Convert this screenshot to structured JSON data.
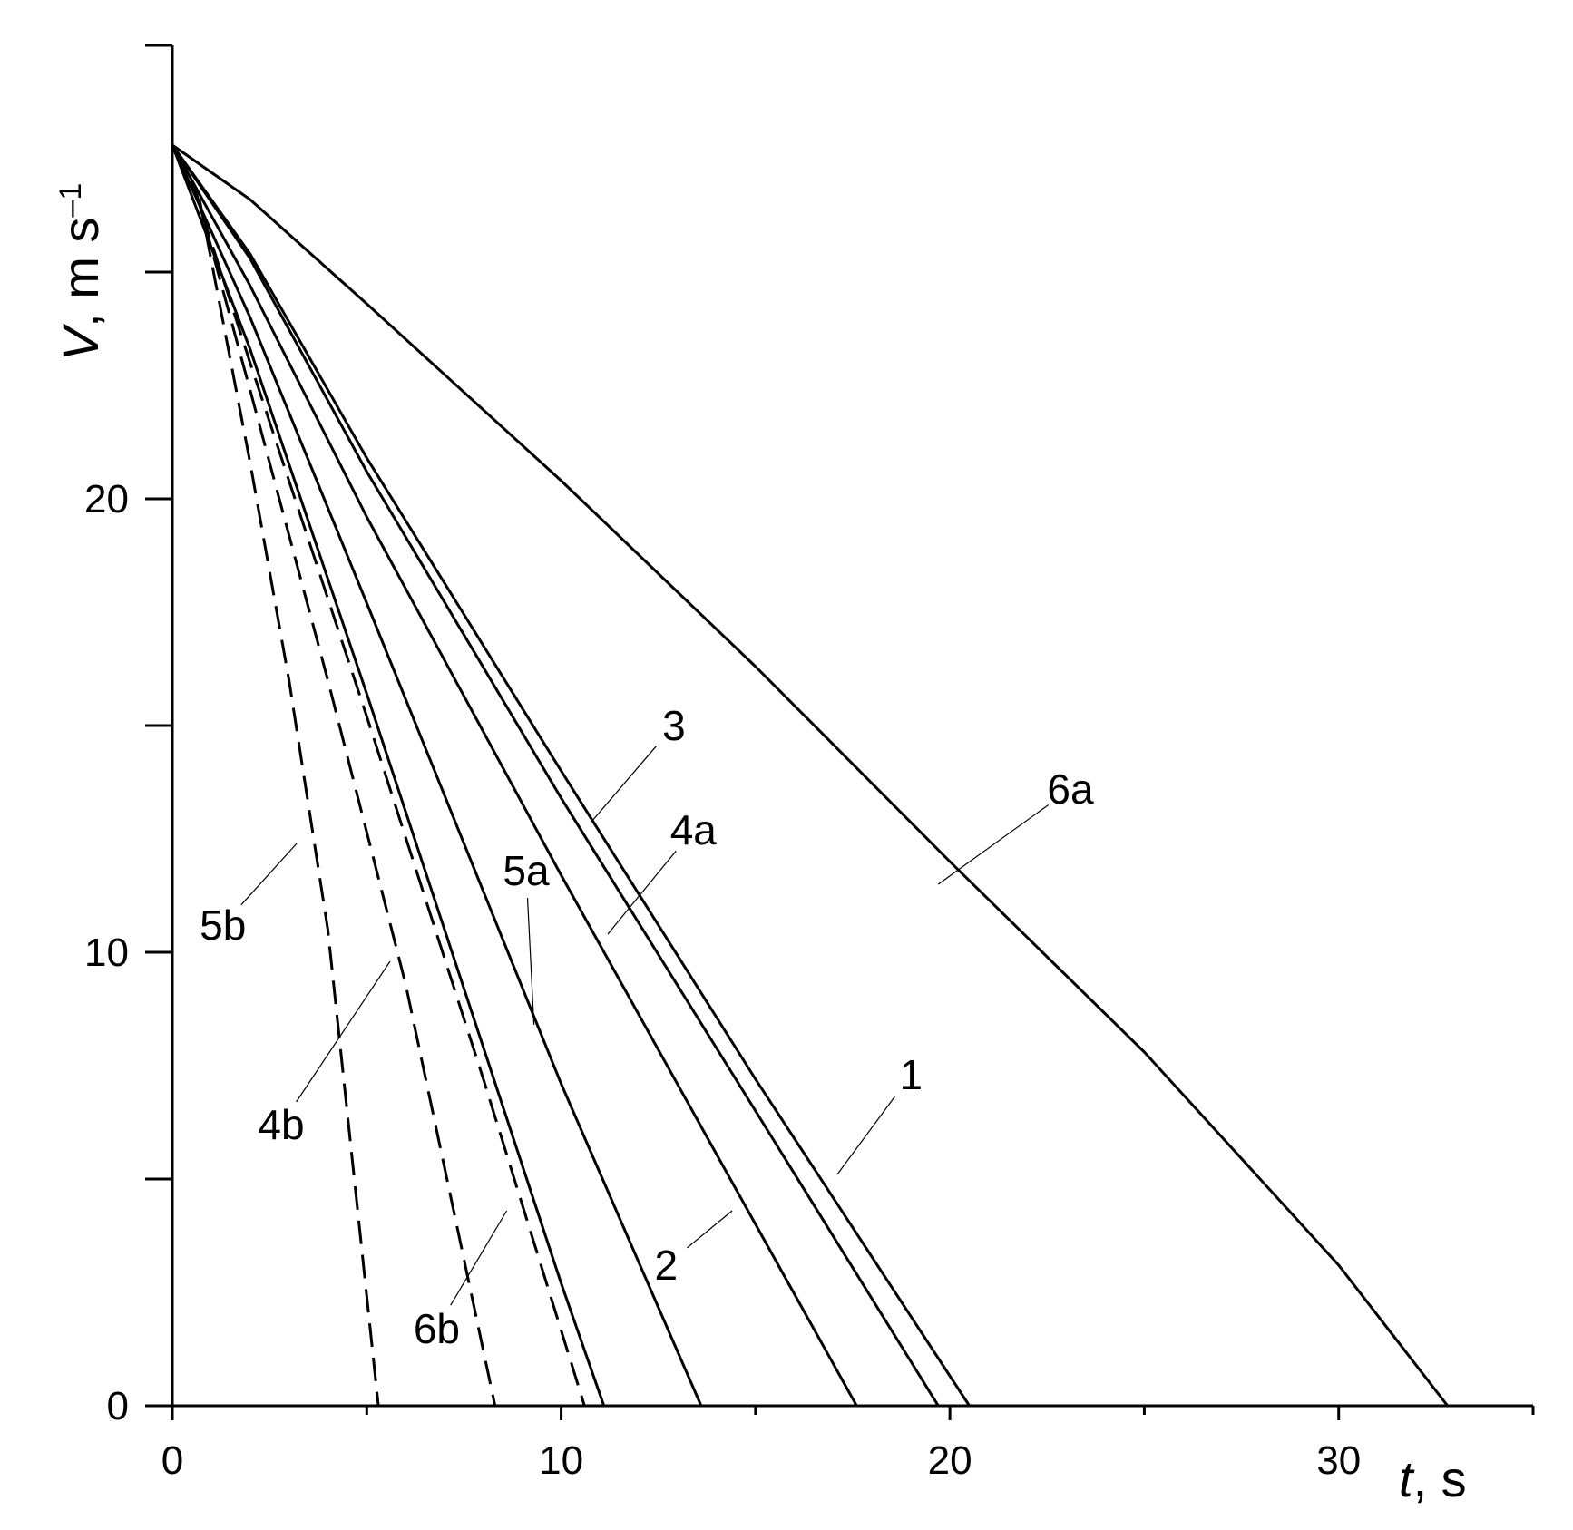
{
  "chart_data": {
    "type": "line",
    "title": "",
    "xlabel": {
      "italic": "t",
      "rest": ", s"
    },
    "ylabel": {
      "italic": "V",
      "rest": ", m s",
      "sup": "–1"
    },
    "xlim": [
      0,
      35
    ],
    "ylim": [
      0,
      30
    ],
    "x_major_ticks": [
      0,
      10,
      20,
      30
    ],
    "x_minor_ticks": [
      5,
      15,
      25,
      35
    ],
    "x_tick_labels": [
      "0",
      "10",
      "20",
      "30"
    ],
    "y_major_ticks": [
      0,
      10,
      20
    ],
    "y_minor_ticks": [
      5,
      15,
      25,
      30
    ],
    "y_tick_labels": [
      "0",
      "10",
      "20"
    ],
    "grid": false,
    "legend": "none",
    "series": [
      {
        "name": "6a",
        "style": "solid",
        "x": [
          0,
          2,
          5,
          10,
          15,
          20,
          25,
          30,
          32.8
        ],
        "y": [
          27.8,
          26.6,
          24.3,
          20.4,
          16.3,
          12.0,
          7.8,
          3.1,
          0
        ]
      },
      {
        "name": "1",
        "style": "solid",
        "x": [
          0,
          2,
          5,
          10,
          15,
          20.5
        ],
        "y": [
          27.8,
          25.4,
          20.9,
          14.0,
          7.2,
          0
        ]
      },
      {
        "name": "3",
        "style": "solid",
        "x": [
          0,
          2,
          5,
          10,
          15,
          19.7
        ],
        "y": [
          27.8,
          25.3,
          20.6,
          13.4,
          6.5,
          0
        ]
      },
      {
        "name": "2",
        "style": "solid",
        "x": [
          0,
          2,
          5,
          10,
          15,
          17.6
        ],
        "y": [
          27.8,
          24.7,
          19.6,
          11.7,
          4.0,
          0
        ]
      },
      {
        "name": "4a",
        "style": "solid",
        "x": [
          0,
          2,
          5,
          10,
          13.6
        ],
        "y": [
          27.8,
          24.0,
          17.7,
          7.1,
          0
        ]
      },
      {
        "name": "5a",
        "style": "solid",
        "x": [
          0,
          2,
          5,
          10,
          11.1
        ],
        "y": [
          27.8,
          23.3,
          15.7,
          2.7,
          0
        ]
      },
      {
        "name": "6b",
        "style": "dashed",
        "x": [
          0.5,
          2,
          5,
          8,
          10.6
        ],
        "y": [
          27.0,
          23.0,
          15.2,
          7.2,
          0
        ]
      },
      {
        "name": "4b",
        "style": "dashed",
        "x": [
          0.6,
          2,
          4,
          6,
          8.3
        ],
        "y": [
          26.8,
          22.4,
          16.0,
          9.3,
          0
        ]
      },
      {
        "name": "5b",
        "style": "dashed",
        "x": [
          0.7,
          2,
          3,
          4,
          5.3
        ],
        "y": [
          26.6,
          20.8,
          16.0,
          10.5,
          0
        ]
      }
    ],
    "annotations": [
      {
        "text": "6a",
        "label_xy": [
          23.1,
          13.6
        ],
        "leader_to": [
          19.7,
          11.5
        ]
      },
      {
        "text": "3",
        "label_xy": [
          12.9,
          15.0
        ],
        "leader_to": [
          10.8,
          12.9
        ]
      },
      {
        "text": "4a",
        "label_xy": [
          13.4,
          12.7
        ],
        "leader_to": [
          11.2,
          10.4
        ]
      },
      {
        "text": "5a",
        "label_xy": [
          9.1,
          11.8
        ],
        "leader_to": [
          9.3,
          8.4
        ]
      },
      {
        "text": "5b",
        "label_xy": [
          1.3,
          10.6
        ],
        "leader_to": [
          3.2,
          12.4
        ]
      },
      {
        "text": "4b",
        "label_xy": [
          2.8,
          6.2
        ],
        "leader_to": [
          5.6,
          9.8
        ]
      },
      {
        "text": "1",
        "label_xy": [
          19.0,
          7.3
        ],
        "leader_to": [
          17.1,
          5.1
        ]
      },
      {
        "text": "2",
        "label_xy": [
          12.7,
          3.1
        ],
        "leader_to": [
          14.4,
          4.3
        ]
      },
      {
        "text": "6b",
        "label_xy": [
          6.8,
          1.7
        ],
        "leader_to": [
          8.6,
          4.3
        ]
      }
    ]
  }
}
